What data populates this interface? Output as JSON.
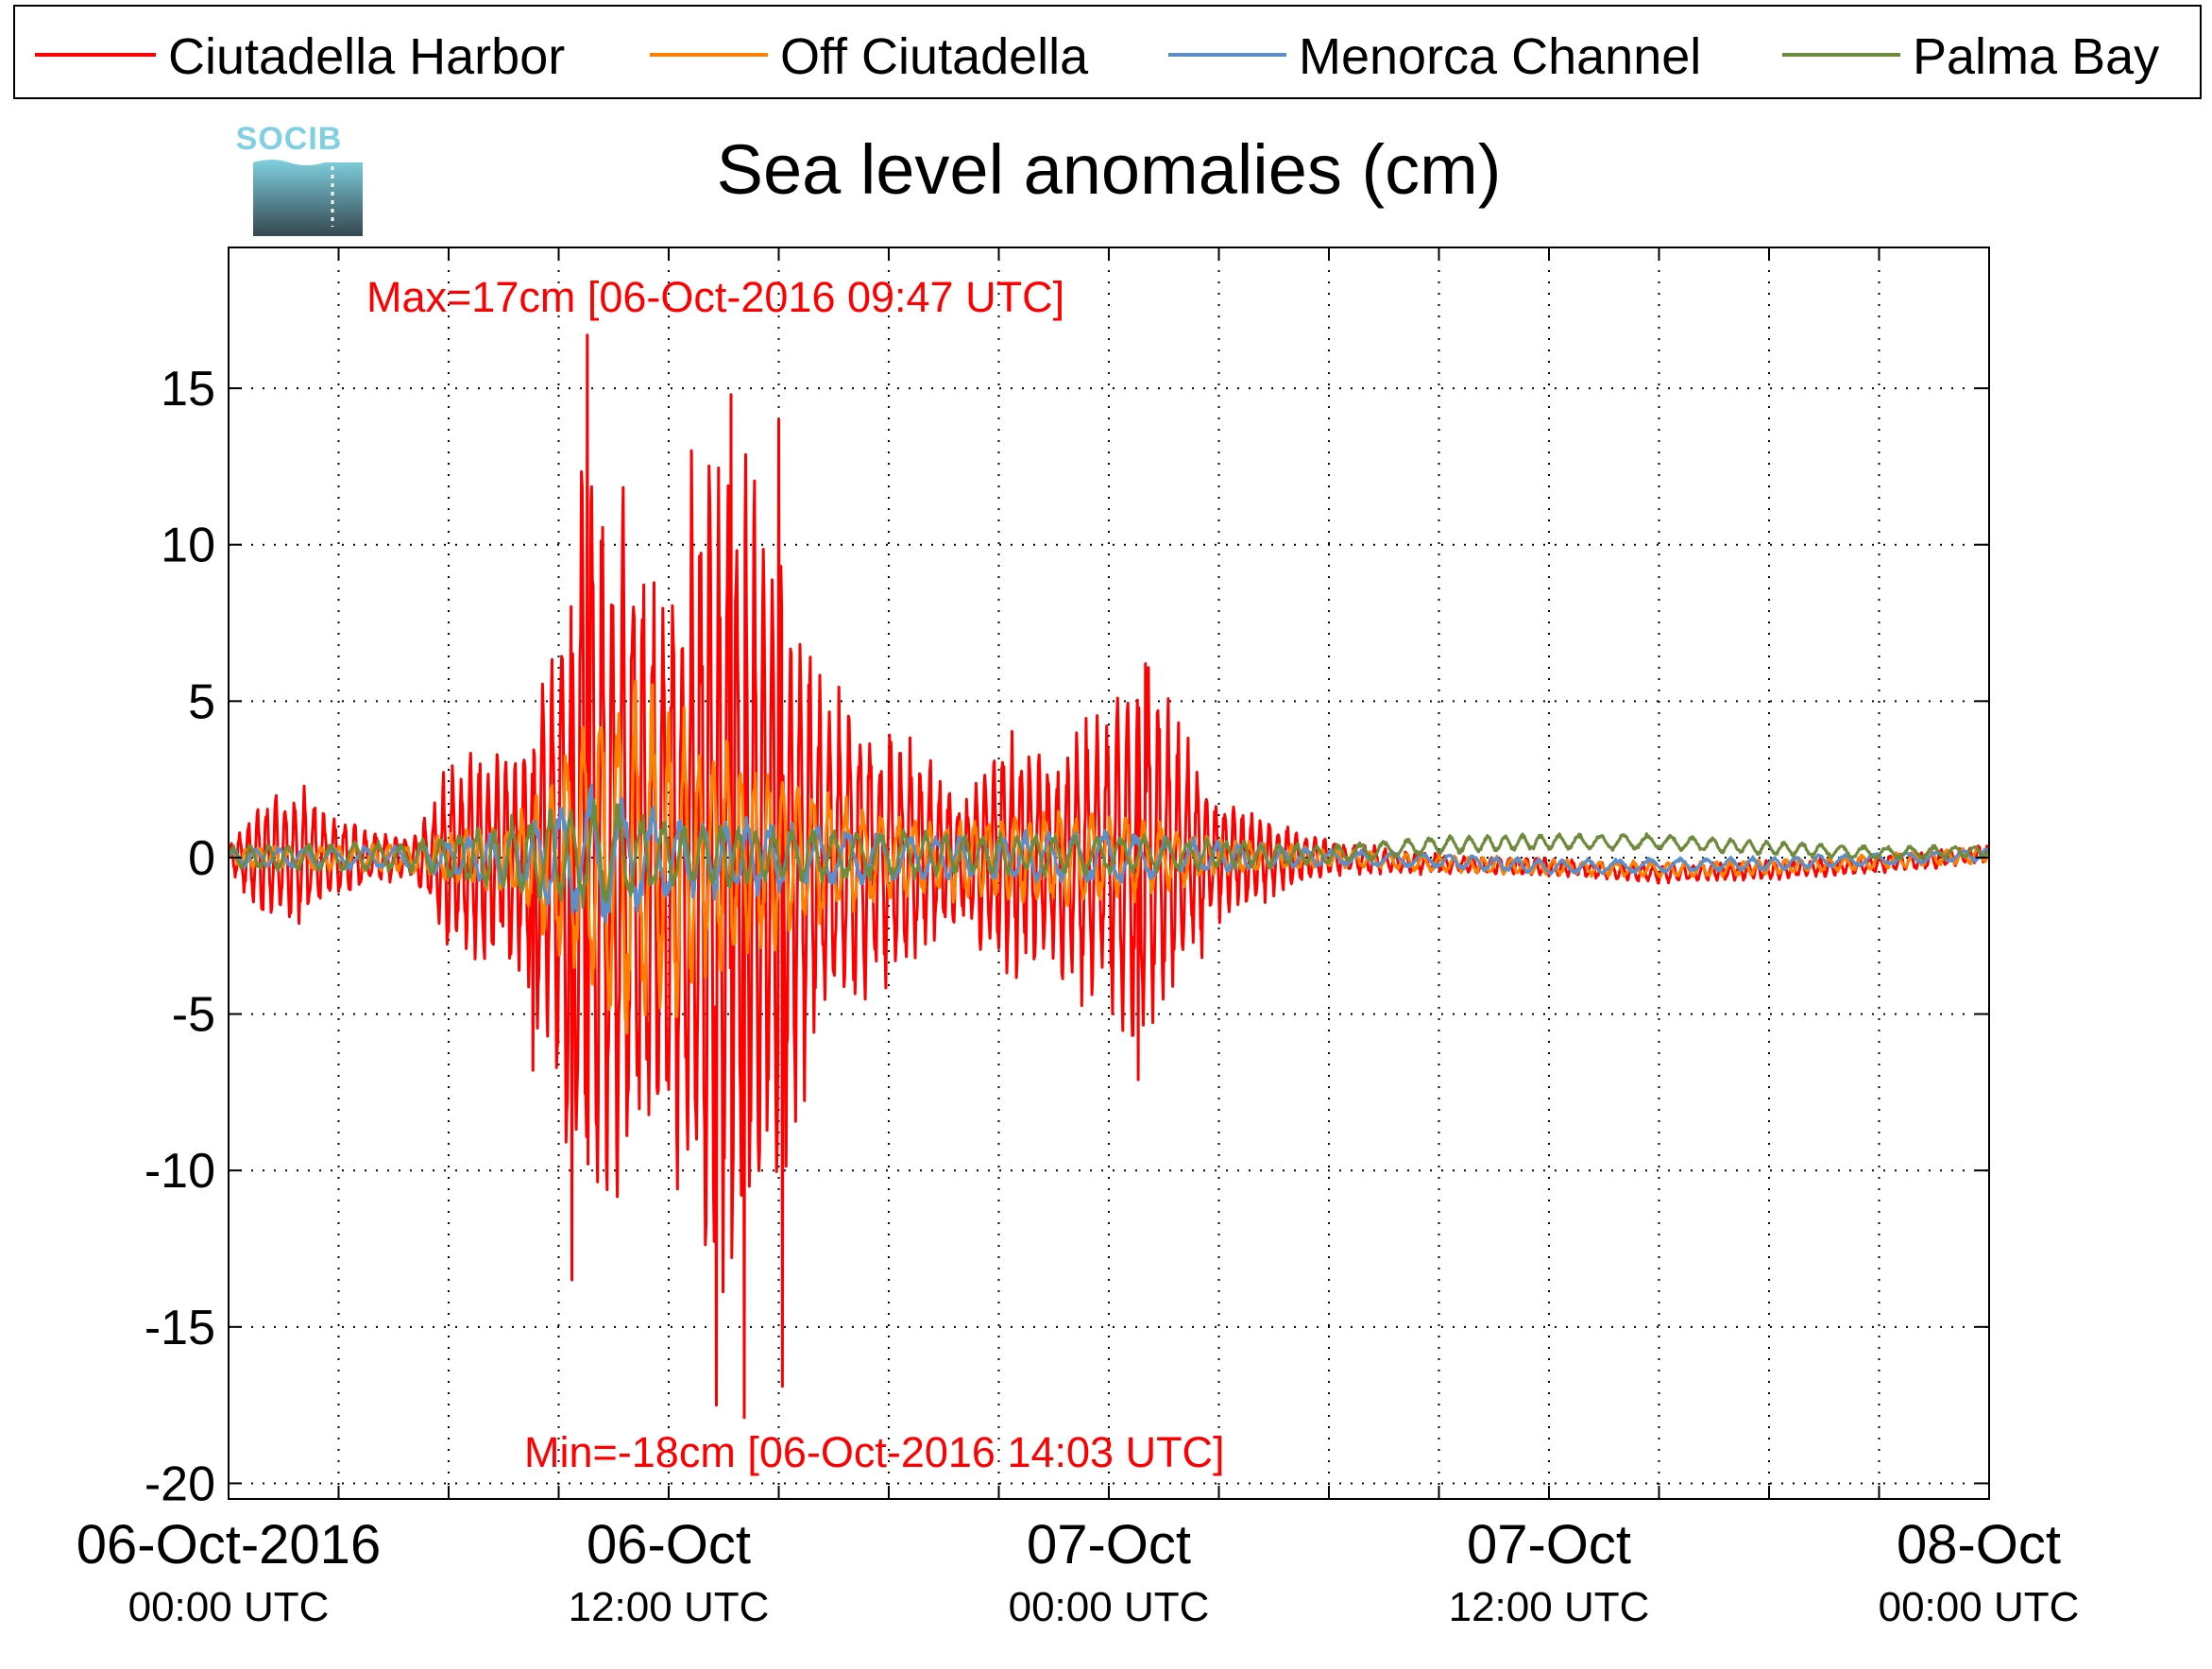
{
  "logo": {
    "text": "SOCIB"
  },
  "colors": {
    "ciutadella_harbor": "#ff0000",
    "off_ciutadella": "#ff8000",
    "menorca_channel": "#5b8fc9",
    "palma_bay": "#6e8b3d",
    "annotation": "#ff0000",
    "axis": "#000000",
    "grid": "#000000",
    "logo_top": "#7fd0e0",
    "logo_bottom": "#34474f"
  },
  "chart_data": {
    "type": "line",
    "title": "Sea level anomalies (cm)",
    "xlabel": "",
    "ylabel": "",
    "ylim": [
      -20.5,
      19.5
    ],
    "xlim_hours": [
      0,
      48
    ],
    "grid": true,
    "grid_style": "dotted",
    "legend_position": "top, outside plot, single row",
    "y_ticks": [
      15,
      10,
      5,
      0,
      -5,
      -10,
      -15,
      -20
    ],
    "y_tick_labels": [
      "15",
      "10",
      "5",
      "0",
      "-5",
      "-10",
      "-15",
      "-20"
    ],
    "x_minor_ticks_hours": [
      3,
      6,
      9,
      15,
      18,
      21,
      27,
      30,
      33,
      39,
      42,
      45
    ],
    "x_major_ticks": [
      {
        "hour": 0,
        "date": "06-Oct-2016",
        "time": "00:00 UTC"
      },
      {
        "hour": 12,
        "date": "06-Oct",
        "time": "12:00 UTC"
      },
      {
        "hour": 24,
        "date": "07-Oct",
        "time": "00:00 UTC"
      },
      {
        "hour": 36,
        "date": "07-Oct",
        "time": "12:00 UTC"
      },
      {
        "hour": 48,
        "date": "08-Oct",
        "time": "00:00 UTC"
      }
    ],
    "annotations": {
      "max": {
        "text": "Max=17cm [06-Oct-2016 09:47 UTC]",
        "hour": 9.78,
        "value": 17
      },
      "min": {
        "text": "Min=-18cm [06-Oct-2016 14:03 UTC]",
        "hour": 14.05,
        "value": -18
      }
    },
    "series": [
      {
        "name": "Ciutadella Harbor",
        "color_key": "ciutadella_harbor",
        "envelope": [
          [
            0,
            0.4
          ],
          [
            1,
            2.2
          ],
          [
            2,
            2.2
          ],
          [
            3,
            1.3
          ],
          [
            4,
            0.9
          ],
          [
            5,
            0.6
          ],
          [
            6,
            3.0
          ],
          [
            7,
            3.6
          ],
          [
            8,
            4.2
          ],
          [
            9,
            8.0
          ],
          [
            9.78,
            16.7
          ],
          [
            10,
            12.5
          ],
          [
            11,
            11.0
          ],
          [
            12,
            9.5
          ],
          [
            13,
            14.0
          ],
          [
            14,
            13.0
          ],
          [
            15,
            11.0
          ],
          [
            16,
            6.0
          ],
          [
            17,
            5.0
          ],
          [
            18,
            4.5
          ],
          [
            19,
            3.5
          ],
          [
            20,
            2.0
          ],
          [
            21,
            4.5
          ],
          [
            22,
            3.5
          ],
          [
            23,
            4.0
          ],
          [
            24,
            5.0
          ],
          [
            25,
            6.2
          ],
          [
            26,
            4.0
          ],
          [
            27,
            2.0
          ],
          [
            28,
            1.5
          ],
          [
            29,
            1.0
          ],
          [
            30,
            0.6
          ],
          [
            33,
            0.3
          ],
          [
            36,
            0.3
          ],
          [
            42,
            0.3
          ],
          [
            48,
            0.3
          ]
        ],
        "base": [
          [
            0,
            0
          ],
          [
            30,
            0
          ],
          [
            33,
            -0.2
          ],
          [
            36,
            -0.3
          ],
          [
            39,
            -0.5
          ],
          [
            42,
            -0.4
          ],
          [
            45,
            -0.2
          ],
          [
            48,
            0.1
          ]
        ],
        "cycle_hours": 0.26,
        "extremes": [
          [
            9.78,
            16.7
          ],
          [
            14.05,
            -17.9
          ],
          [
            9.35,
            -13.5
          ],
          [
            13.3,
            -17.5
          ],
          [
            15.1,
            -16.9
          ],
          [
            13.7,
            14.8
          ],
          [
            15.0,
            14.0
          ],
          [
            8.3,
            -6.8
          ],
          [
            24.8,
            -7.1
          ],
          [
            25.0,
            6.2
          ]
        ]
      },
      {
        "name": "Off Ciutadella",
        "color_key": "off_ciutadella",
        "envelope": [
          [
            0,
            0.3
          ],
          [
            5,
            0.5
          ],
          [
            8,
            1.5
          ],
          [
            9,
            3.5
          ],
          [
            10,
            5.0
          ],
          [
            11,
            6.0
          ],
          [
            12,
            5.0
          ],
          [
            13,
            4.0
          ],
          [
            15,
            3.0
          ],
          [
            17,
            1.8
          ],
          [
            19,
            1.2
          ],
          [
            21,
            1.5
          ],
          [
            23,
            1.6
          ],
          [
            25,
            1.3
          ],
          [
            27,
            0.6
          ],
          [
            30,
            0.3
          ],
          [
            36,
            0.25
          ],
          [
            48,
            0.25
          ]
        ],
        "base": [
          [
            0,
            0
          ],
          [
            30,
            0
          ],
          [
            33,
            -0.2
          ],
          [
            36,
            -0.3
          ],
          [
            40,
            -0.4
          ],
          [
            44,
            -0.2
          ],
          [
            48,
            0.1
          ]
        ],
        "cycle_hours": 0.42
      },
      {
        "name": "Menorca Channel",
        "color_key": "menorca_channel",
        "envelope": [
          [
            0,
            0.3
          ],
          [
            5,
            0.4
          ],
          [
            8,
            1.0
          ],
          [
            10,
            2.5
          ],
          [
            12,
            1.3
          ],
          [
            14,
            1.2
          ],
          [
            17,
            0.9
          ],
          [
            20,
            0.7
          ],
          [
            24,
            0.9
          ],
          [
            26,
            0.6
          ],
          [
            30,
            0.25
          ],
          [
            48,
            0.2
          ]
        ],
        "base": [
          [
            0,
            0
          ],
          [
            30,
            0
          ],
          [
            33,
            -0.1
          ],
          [
            36,
            -0.3
          ],
          [
            42,
            -0.2
          ],
          [
            48,
            0.1
          ]
        ],
        "cycle_hours": 0.7
      },
      {
        "name": "Palma Bay",
        "color_key": "palma_bay",
        "envelope": [
          [
            0,
            0.4
          ],
          [
            5,
            0.5
          ],
          [
            9,
            1.5
          ],
          [
            10,
            1.8
          ],
          [
            12,
            1.1
          ],
          [
            15,
            0.9
          ],
          [
            20,
            0.7
          ],
          [
            25,
            0.6
          ],
          [
            30,
            0.3
          ],
          [
            48,
            0.2
          ]
        ],
        "base": [
          [
            0,
            0
          ],
          [
            20,
            0.1
          ],
          [
            30,
            0.1
          ],
          [
            33,
            0.4
          ],
          [
            36,
            0.5
          ],
          [
            39,
            0.5
          ],
          [
            42,
            0.3
          ],
          [
            45,
            0.15
          ],
          [
            48,
            0.2
          ]
        ],
        "cycle_hours": 0.55
      }
    ]
  }
}
